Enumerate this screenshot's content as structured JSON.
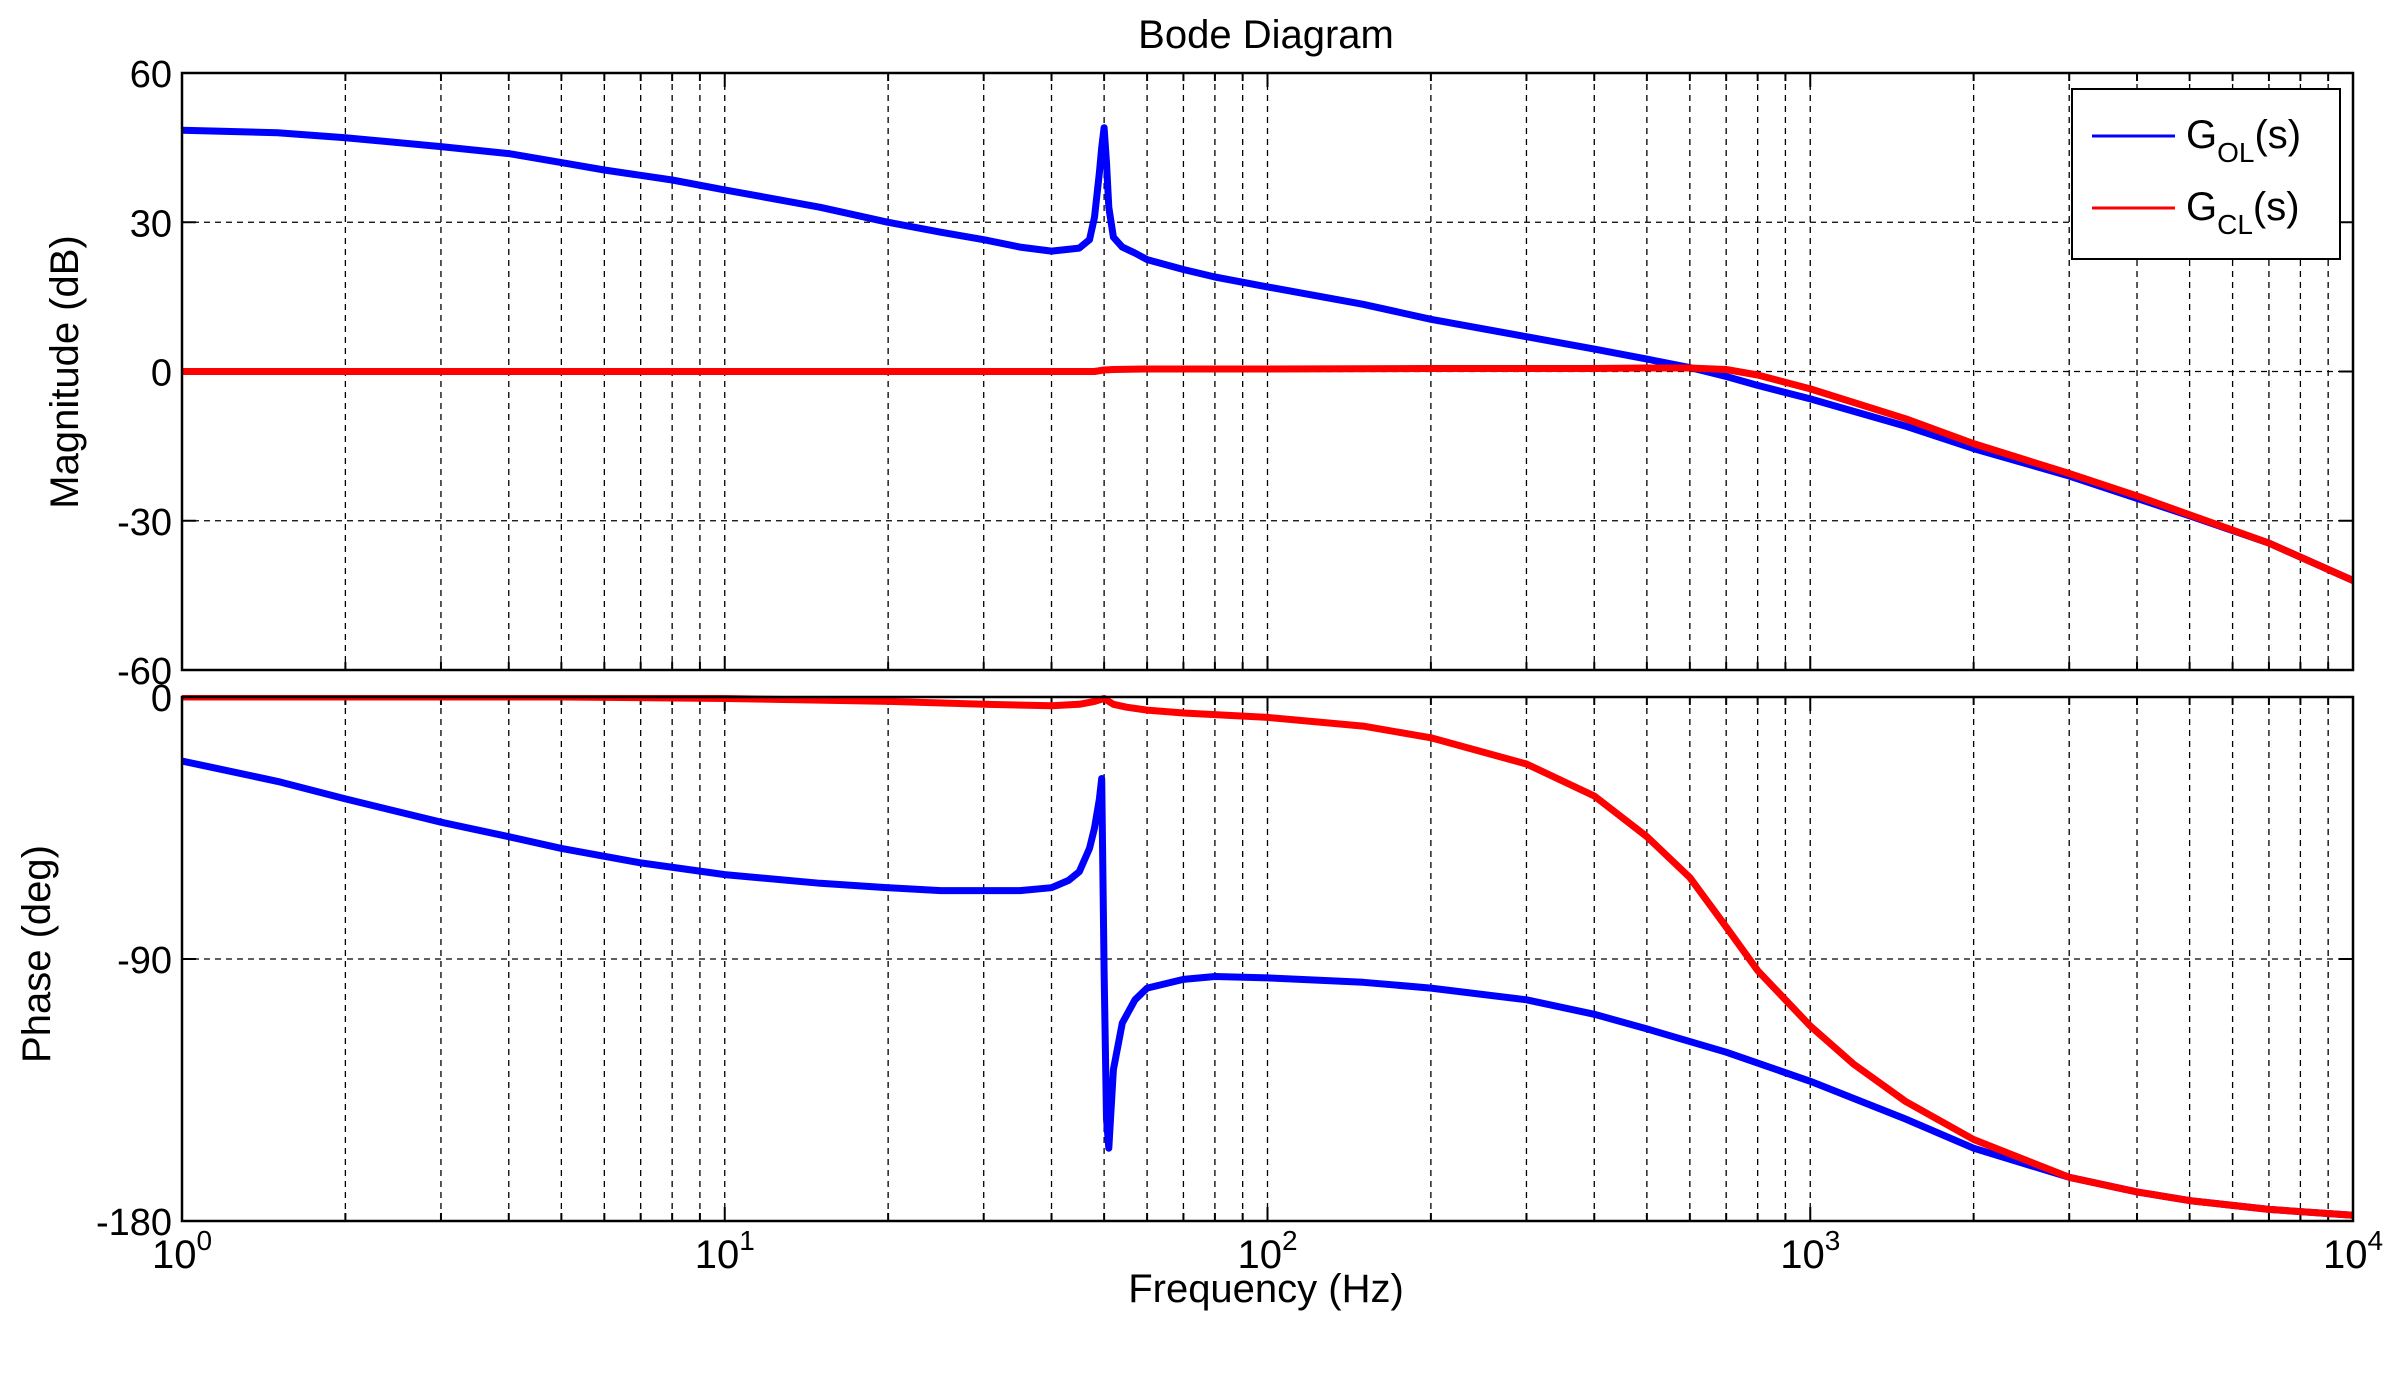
{
  "figure": {
    "title": "Bode Diagram",
    "xlabel": "Frequency  (Hz)",
    "x_tick_labels": [
      {
        "base": "10",
        "exp": "0"
      },
      {
        "base": "10",
        "exp": "1"
      },
      {
        "base": "10",
        "exp": "2"
      },
      {
        "base": "10",
        "exp": "3"
      },
      {
        "base": "10",
        "exp": "4"
      }
    ],
    "legend": [
      {
        "main": "G",
        "sub": "OL",
        "tail": "(s)",
        "color": "#0000ff"
      },
      {
        "main": "G",
        "sub": "CL",
        "tail": "(s)",
        "color": "#ff0000"
      }
    ]
  },
  "chart_data": [
    {
      "type": "line",
      "panel": "magnitude",
      "ylabel": "Magnitude (dB)",
      "xscale": "log",
      "xlim": [
        1,
        10000
      ],
      "ylim": [
        -60,
        60
      ],
      "yticks": [
        -60,
        -30,
        0,
        30,
        60
      ],
      "y_tick_labels": [
        "-60",
        "-30",
        "0",
        "30",
        "60"
      ],
      "grid": true,
      "legend_position": "top-right",
      "series": [
        {
          "name": "G_OL(s)",
          "color": "#0000ff",
          "x": [
            1,
            1.5,
            2,
            3,
            4,
            5,
            6,
            8,
            10,
            15,
            20,
            25,
            30,
            35,
            40,
            45,
            47,
            48,
            49,
            49.5,
            50,
            50.5,
            51,
            52,
            54,
            57,
            60,
            70,
            80,
            100,
            150,
            200,
            300,
            400,
            500,
            600,
            700,
            800,
            1000,
            1500,
            2000,
            3000,
            4000,
            5000,
            7000,
            10000
          ],
          "y": [
            48.5,
            48,
            47,
            45.2,
            43.8,
            42,
            40.5,
            38.5,
            36.5,
            33,
            30,
            28,
            26.5,
            25,
            24.2,
            24.8,
            26.5,
            31,
            40,
            45,
            49,
            42,
            33,
            27,
            25,
            23.8,
            22.5,
            20.5,
            19,
            17,
            13.5,
            10.5,
            7,
            4.5,
            2.5,
            0.8,
            -1,
            -2.8,
            -5.5,
            -11,
            -15.5,
            -21,
            -25.5,
            -29,
            -34.5,
            -42
          ]
        },
        {
          "name": "G_CL(s)",
          "color": "#ff0000",
          "x": [
            1,
            10,
            40,
            48,
            50,
            52,
            60,
            100,
            200,
            300,
            400,
            500,
            600,
            700,
            800,
            1000,
            1500,
            2000,
            3000,
            4000,
            5000,
            7000,
            10000
          ],
          "y": [
            0,
            0,
            0,
            0,
            0.3,
            0.4,
            0.5,
            0.5,
            0.6,
            0.6,
            0.6,
            0.7,
            0.7,
            0.4,
            -0.7,
            -3.5,
            -9.5,
            -14.5,
            -20.5,
            -25,
            -28.8,
            -34.5,
            -42
          ]
        }
      ]
    },
    {
      "type": "line",
      "panel": "phase",
      "ylabel": "Phase (deg)",
      "xscale": "log",
      "xlim": [
        1,
        10000
      ],
      "ylim": [
        -180,
        0
      ],
      "yticks": [
        -180,
        -90,
        0
      ],
      "y_tick_labels": [
        "-180",
        "-90",
        "0"
      ],
      "grid": true,
      "series": [
        {
          "name": "G_OL(s)",
          "color": "#0000ff",
          "x": [
            1,
            1.5,
            2,
            3,
            4,
            5,
            7,
            10,
            15,
            20,
            25,
            30,
            35,
            40,
            43,
            45,
            47,
            48,
            49,
            49.5,
            50,
            50.5,
            51,
            52,
            54,
            57,
            60,
            70,
            80,
            100,
            150,
            200,
            300,
            400,
            500,
            700,
            1000,
            1500,
            2000,
            3000,
            4000,
            5000,
            7000,
            10000
          ],
          "y": [
            -22,
            -29,
            -35,
            -43,
            -48,
            -52,
            -57,
            -61,
            -64,
            -65.5,
            -66.5,
            -66.5,
            -66.5,
            -65.5,
            -63,
            -60,
            -52,
            -45,
            -35,
            -28,
            -94,
            -145,
            -155,
            -128,
            -112,
            -104,
            -100,
            -97,
            -96,
            -96.5,
            -98,
            -100,
            -104,
            -109,
            -114,
            -122,
            -132,
            -145,
            -155,
            -165,
            -170,
            -173,
            -176,
            -178
          ]
        },
        {
          "name": "G_CL(s)",
          "color": "#ff0000",
          "x": [
            1,
            5,
            10,
            20,
            30,
            40,
            45,
            48,
            50,
            52,
            55,
            60,
            70,
            100,
            150,
            200,
            300,
            400,
            500,
            600,
            700,
            800,
            1000,
            1200,
            1500,
            2000,
            3000,
            4000,
            5000,
            7000,
            10000
          ],
          "y": [
            0,
            0,
            -0.5,
            -1.5,
            -2.5,
            -3,
            -2.5,
            -1.5,
            -0.5,
            -2.5,
            -3.5,
            -4.5,
            -5.5,
            -7,
            -10,
            -14,
            -23,
            -34,
            -48,
            -62,
            -79,
            -94,
            -113,
            -126,
            -139,
            -152,
            -165,
            -170,
            -173,
            -176,
            -178
          ]
        }
      ]
    }
  ]
}
